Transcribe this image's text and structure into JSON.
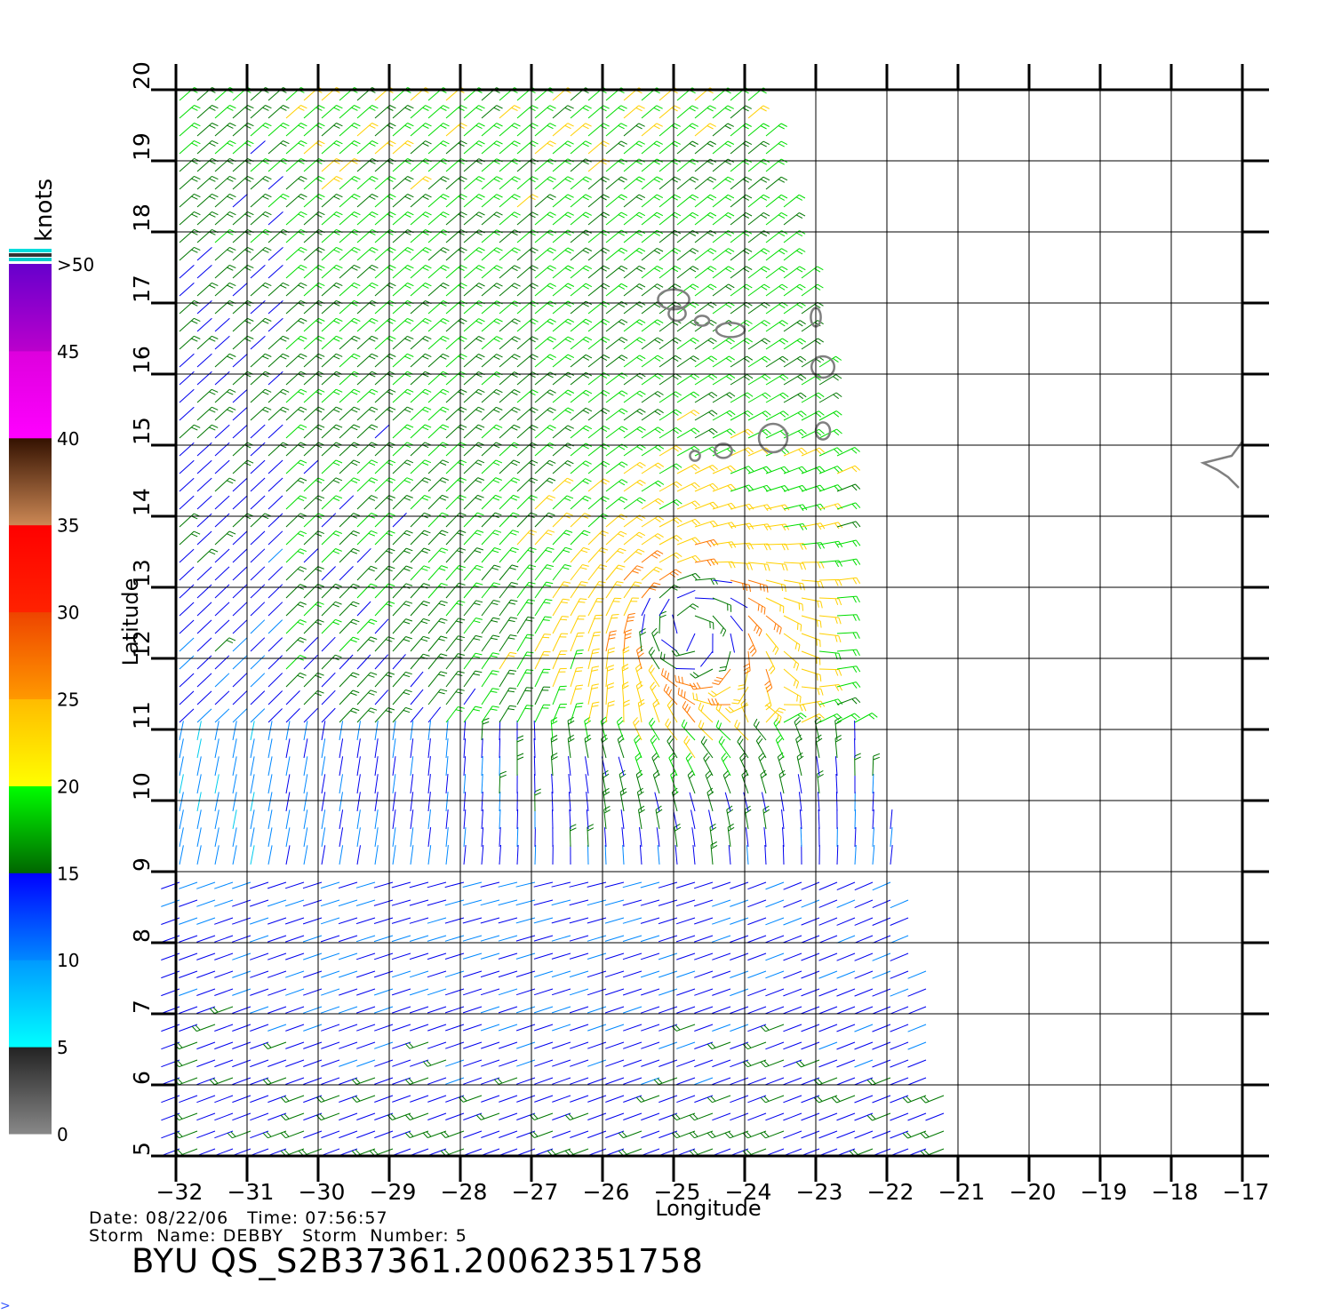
{
  "map": {
    "x_axis": {
      "label": "Longitude",
      "ticks": [
        -32,
        -31,
        -30,
        -29,
        -28,
        -27,
        -26,
        -25,
        -24,
        -23,
        -22,
        -21,
        -20,
        -19,
        -18,
        -17
      ]
    },
    "y_axis": {
      "label": "Latitude",
      "ticks": [
        5,
        6,
        7,
        8,
        9,
        10,
        11,
        12,
        13,
        14,
        15,
        16,
        17,
        18,
        19,
        20
      ]
    },
    "extent": {
      "lon": [
        -32,
        -17
      ],
      "lat": [
        5,
        20
      ]
    },
    "grid": true,
    "coastline_color": "#808080",
    "swath_edge": [
      [
        20,
        -23.8
      ],
      [
        18,
        -23.3
      ],
      [
        16,
        -22.9
      ],
      [
        14,
        -22.5
      ],
      [
        12,
        -22.6
      ],
      [
        11,
        -22.4
      ],
      [
        10,
        -22.0
      ],
      [
        8,
        -21.5
      ],
      [
        6,
        -21.2
      ],
      [
        5,
        -21.0
      ]
    ]
  },
  "colorbar": {
    "unit_label": "knots",
    "labels": [
      "0",
      "5",
      "10",
      "15",
      "20",
      "25",
      "30",
      "35",
      "40",
      "45",
      ">50"
    ],
    "levels": [
      0,
      5,
      10,
      15,
      20,
      25,
      30,
      35,
      40,
      45,
      50
    ],
    "colors": {
      "0-5": [
        "#888888",
        "#222222"
      ],
      "5-10": [
        "#00ffff",
        "#0099ff"
      ],
      "10-15": [
        "#0088ff",
        "#0000ff"
      ],
      "15-20": [
        "#006600",
        "#00ff00"
      ],
      "20-25": [
        "#ffff00",
        "#ffbb00"
      ],
      "25-30": [
        "#ff9900",
        "#ee4400"
      ],
      "30-35": [
        "#ff2200",
        "#ff0000"
      ],
      "35-40": [
        "#cc8855",
        "#331100"
      ],
      "40-45": [
        "#ff00ff",
        "#dd00dd"
      ],
      "45-50": [
        "#bb00cc",
        "#6600cc"
      ],
      "top_bands": [
        "#00dddd",
        "#333333",
        "#00cccc"
      ]
    }
  },
  "storm": {
    "center_lon": -24.8,
    "center_lat": 12.4
  },
  "info": {
    "line1": "Date: 08/22/06   Time: 07:56:57",
    "line2": "Storm  Name: DEBBY   Storm  Number: 5",
    "product_id": "BYU  QS_S2B37361.20062351758",
    "corner_mark": ">"
  }
}
